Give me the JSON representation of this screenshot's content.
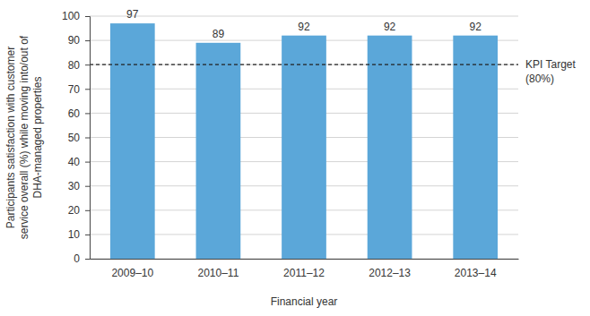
{
  "chart_data": {
    "type": "bar",
    "categories": [
      "2009–10",
      "2010–11",
      "2011–12",
      "2012–13",
      "2013–14"
    ],
    "values": [
      97,
      89,
      92,
      92,
      92
    ],
    "color": "#5ba7d9",
    "ylim": [
      0,
      100
    ],
    "yticks": [
      0,
      10,
      20,
      30,
      40,
      50,
      60,
      70,
      80,
      90,
      100
    ],
    "grid": true,
    "data_labels": true,
    "x_label": "Financial year",
    "y_label": [
      "Participants satisfaction with customer",
      "service overall (%) while moving into/out of",
      "DHA-managed properties"
    ],
    "annotations": [
      {
        "y": 80,
        "line_style": "dashed",
        "text": [
          "KPI Target",
          "(80%)"
        ]
      }
    ]
  }
}
